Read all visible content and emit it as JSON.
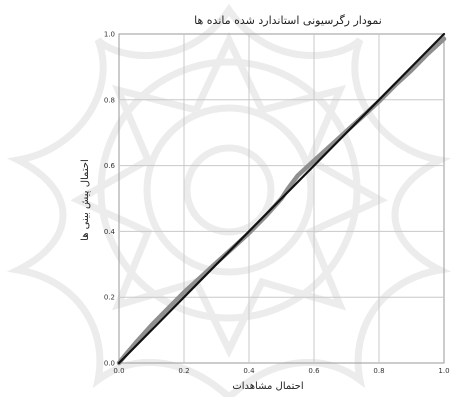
{
  "chart_data": {
    "type": "line",
    "title": "نمودار رگرسیونی استاندارد شده مانده ها",
    "xlabel": "احتمال مشاهدات",
    "ylabel": "احتمال پیش بینی ها",
    "xlim": [
      0,
      1
    ],
    "ylim": [
      0,
      1
    ],
    "grid": true,
    "x_ticks": [
      "0.0",
      "0.2",
      "0.4",
      "0.6",
      "0.8",
      "1.0"
    ],
    "y_ticks": [
      "0.0",
      "0.2",
      "0.4",
      "0.6",
      "0.8",
      "1.0"
    ],
    "series": [
      {
        "role": "observed",
        "color": "#8f8f8f",
        "x": [
          0.0,
          0.02,
          0.05,
          0.1,
          0.15,
          0.2,
          0.25,
          0.3,
          0.35,
          0.4,
          0.45,
          0.5,
          0.52,
          0.55,
          0.6,
          0.65,
          0.7,
          0.75,
          0.8,
          0.85,
          0.9,
          0.95,
          1.0
        ],
        "values": [
          0.0,
          0.025,
          0.06,
          0.115,
          0.165,
          0.215,
          0.26,
          0.305,
          0.35,
          0.395,
          0.445,
          0.5,
          0.53,
          0.57,
          0.615,
          0.66,
          0.705,
          0.75,
          0.795,
          0.845,
          0.89,
          0.94,
          0.985
        ]
      },
      {
        "role": "reference",
        "color": "#111111",
        "x": [
          0.0,
          1.0
        ],
        "values": [
          0.0,
          1.0
        ]
      }
    ]
  },
  "colors": {
    "background": "#ffffff",
    "grid": "#c8c8c8",
    "frame": "#9a9a9a",
    "watermark": "#ececec"
  }
}
